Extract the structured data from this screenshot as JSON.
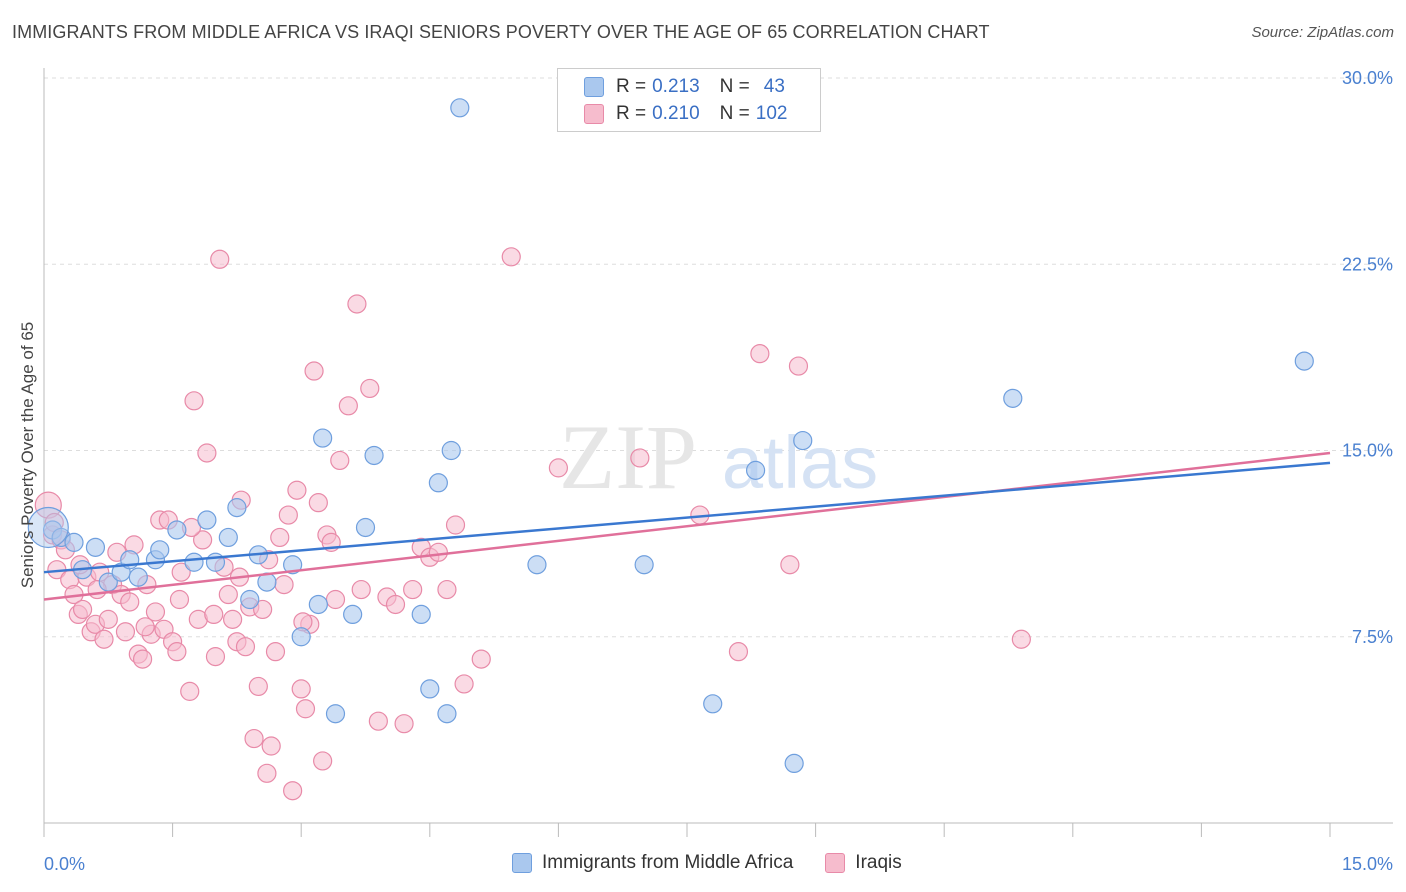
{
  "title": "IMMIGRANTS FROM MIDDLE AFRICA VS IRAQI SENIORS POVERTY OVER THE AGE OF 65 CORRELATION CHART",
  "source": "Source: ZipAtlas.com",
  "watermark": {
    "zip": "ZIP",
    "atlas": "atlas"
  },
  "legend": {
    "rows": [
      {
        "r_label": "R =",
        "r_value": "0.213",
        "n_label": "N =",
        "n_value": "43"
      },
      {
        "r_label": "R =",
        "r_value": "0.210",
        "n_label": "N =",
        "n_value": "102"
      }
    ]
  },
  "bottom_legend": {
    "items": [
      "Immigrants from Middle Africa",
      "Iraqis"
    ]
  },
  "colors": {
    "blue_fill": "#aac8ee",
    "blue_stroke": "#6f9fde",
    "blue_line": "#3a78d0",
    "pink_fill": "#f6bccd",
    "pink_stroke": "#e88aa8",
    "pink_line": "#e0709a",
    "tick_label": "#4a80d0",
    "grid": "#dddddd"
  },
  "chart_data": {
    "type": "scatter",
    "title": "IMMIGRANTS FROM MIDDLE AFRICA VS IRAQI SENIORS POVERTY OVER THE AGE OF 65 CORRELATION CHART",
    "xlabel": "",
    "ylabel": "Seniors Poverty Over the Age of 65",
    "xlim": [
      0,
      15
    ],
    "ylim": [
      0,
      30
    ],
    "x_tick_labels": [
      "0.0%",
      "15.0%"
    ],
    "y_tick_values": [
      7.5,
      15,
      22.5,
      30
    ],
    "y_tick_labels": [
      "7.5%",
      "15.0%",
      "22.5%",
      "30.0%"
    ],
    "grid": true,
    "legend_position": "top-center",
    "series": [
      {
        "name": "Immigrants from Middle Africa",
        "trend": [
          [
            0,
            10.1
          ],
          [
            15,
            14.5
          ]
        ],
        "points": [
          [
            0.1,
            11.8
          ],
          [
            0.2,
            11.5
          ],
          [
            0.35,
            11.3
          ],
          [
            0.45,
            10.2
          ],
          [
            0.6,
            11.1
          ],
          [
            0.75,
            9.7
          ],
          [
            0.9,
            10.1
          ],
          [
            1.0,
            10.6
          ],
          [
            1.1,
            9.9
          ],
          [
            1.3,
            10.6
          ],
          [
            1.35,
            11.0
          ],
          [
            1.55,
            11.8
          ],
          [
            1.75,
            10.5
          ],
          [
            1.9,
            12.2
          ],
          [
            2.0,
            10.5
          ],
          [
            2.15,
            11.5
          ],
          [
            2.25,
            12.7
          ],
          [
            2.4,
            9.0
          ],
          [
            2.5,
            10.8
          ],
          [
            2.6,
            9.7
          ],
          [
            2.9,
            10.4
          ],
          [
            3.0,
            7.5
          ],
          [
            3.2,
            8.8
          ],
          [
            3.25,
            15.5
          ],
          [
            3.4,
            4.4
          ],
          [
            3.6,
            8.4
          ],
          [
            3.75,
            11.9
          ],
          [
            3.85,
            14.8
          ],
          [
            4.4,
            8.4
          ],
          [
            4.5,
            5.4
          ],
          [
            4.6,
            13.7
          ],
          [
            4.7,
            4.4
          ],
          [
            4.75,
            15.0
          ],
          [
            4.85,
            28.8
          ],
          [
            5.75,
            10.4
          ],
          [
            7.0,
            10.4
          ],
          [
            7.8,
            4.8
          ],
          [
            8.3,
            14.2
          ],
          [
            8.75,
            2.4
          ],
          [
            8.85,
            15.4
          ],
          [
            11.3,
            17.1
          ],
          [
            14.7,
            18.6
          ],
          [
            0.05,
            11.9
          ]
        ]
      },
      {
        "name": "Iraqis",
        "trend": [
          [
            0,
            9.0
          ],
          [
            15,
            14.9
          ]
        ],
        "points": [
          [
            0.05,
            12.8
          ],
          [
            0.1,
            11.6
          ],
          [
            0.15,
            10.2
          ],
          [
            0.2,
            11.4
          ],
          [
            0.25,
            11.0
          ],
          [
            0.3,
            9.8
          ],
          [
            0.35,
            9.2
          ],
          [
            0.4,
            8.4
          ],
          [
            0.45,
            8.6
          ],
          [
            0.5,
            9.9
          ],
          [
            0.55,
            7.7
          ],
          [
            0.6,
            8.0
          ],
          [
            0.65,
            10.1
          ],
          [
            0.7,
            7.4
          ],
          [
            0.75,
            8.2
          ],
          [
            0.8,
            9.6
          ],
          [
            0.85,
            10.9
          ],
          [
            0.9,
            9.2
          ],
          [
            0.95,
            7.7
          ],
          [
            1.0,
            8.9
          ],
          [
            1.05,
            11.2
          ],
          [
            1.1,
            6.8
          ],
          [
            1.15,
            6.6
          ],
          [
            1.2,
            9.6
          ],
          [
            1.25,
            7.6
          ],
          [
            1.3,
            8.5
          ],
          [
            1.35,
            12.2
          ],
          [
            1.4,
            7.8
          ],
          [
            1.45,
            12.2
          ],
          [
            1.5,
            7.3
          ],
          [
            1.55,
            6.9
          ],
          [
            1.6,
            10.1
          ],
          [
            1.7,
            5.3
          ],
          [
            1.75,
            17.0
          ],
          [
            1.8,
            8.2
          ],
          [
            1.85,
            11.4
          ],
          [
            1.9,
            14.9
          ],
          [
            2.0,
            6.7
          ],
          [
            2.05,
            22.7
          ],
          [
            2.1,
            10.3
          ],
          [
            2.15,
            9.2
          ],
          [
            2.2,
            8.2
          ],
          [
            2.25,
            7.3
          ],
          [
            2.3,
            13.0
          ],
          [
            2.35,
            7.1
          ],
          [
            2.4,
            8.7
          ],
          [
            2.45,
            3.4
          ],
          [
            2.5,
            5.5
          ],
          [
            2.55,
            8.6
          ],
          [
            2.6,
            2.0
          ],
          [
            2.65,
            3.1
          ],
          [
            2.7,
            6.9
          ],
          [
            2.75,
            11.5
          ],
          [
            2.8,
            9.6
          ],
          [
            2.85,
            12.4
          ],
          [
            2.9,
            1.3
          ],
          [
            2.95,
            13.4
          ],
          [
            3.0,
            5.4
          ],
          [
            3.05,
            4.6
          ],
          [
            3.1,
            8.0
          ],
          [
            3.15,
            18.2
          ],
          [
            3.2,
            12.9
          ],
          [
            3.25,
            2.5
          ],
          [
            3.3,
            11.6
          ],
          [
            3.35,
            11.3
          ],
          [
            3.4,
            9.0
          ],
          [
            3.45,
            14.6
          ],
          [
            3.55,
            16.8
          ],
          [
            3.65,
            20.9
          ],
          [
            3.7,
            9.4
          ],
          [
            3.8,
            17.5
          ],
          [
            3.9,
            4.1
          ],
          [
            4.0,
            9.1
          ],
          [
            4.1,
            8.8
          ],
          [
            4.2,
            4.0
          ],
          [
            4.3,
            9.4
          ],
          [
            4.4,
            11.1
          ],
          [
            4.5,
            10.7
          ],
          [
            4.6,
            10.9
          ],
          [
            4.7,
            9.4
          ],
          [
            4.8,
            12.0
          ],
          [
            4.9,
            5.6
          ],
          [
            5.1,
            6.6
          ],
          [
            5.45,
            22.8
          ],
          [
            6.0,
            14.3
          ],
          [
            6.95,
            14.7
          ],
          [
            7.65,
            12.4
          ],
          [
            8.1,
            6.9
          ],
          [
            8.35,
            18.9
          ],
          [
            8.7,
            10.4
          ],
          [
            8.8,
            18.4
          ],
          [
            11.4,
            7.4
          ],
          [
            0.12,
            12.1
          ],
          [
            0.42,
            10.4
          ],
          [
            0.62,
            9.4
          ],
          [
            1.18,
            7.9
          ],
          [
            1.58,
            9.0
          ],
          [
            1.98,
            8.4
          ],
          [
            2.28,
            9.9
          ],
          [
            2.62,
            10.6
          ],
          [
            3.02,
            8.1
          ],
          [
            1.72,
            11.9
          ]
        ]
      }
    ]
  }
}
